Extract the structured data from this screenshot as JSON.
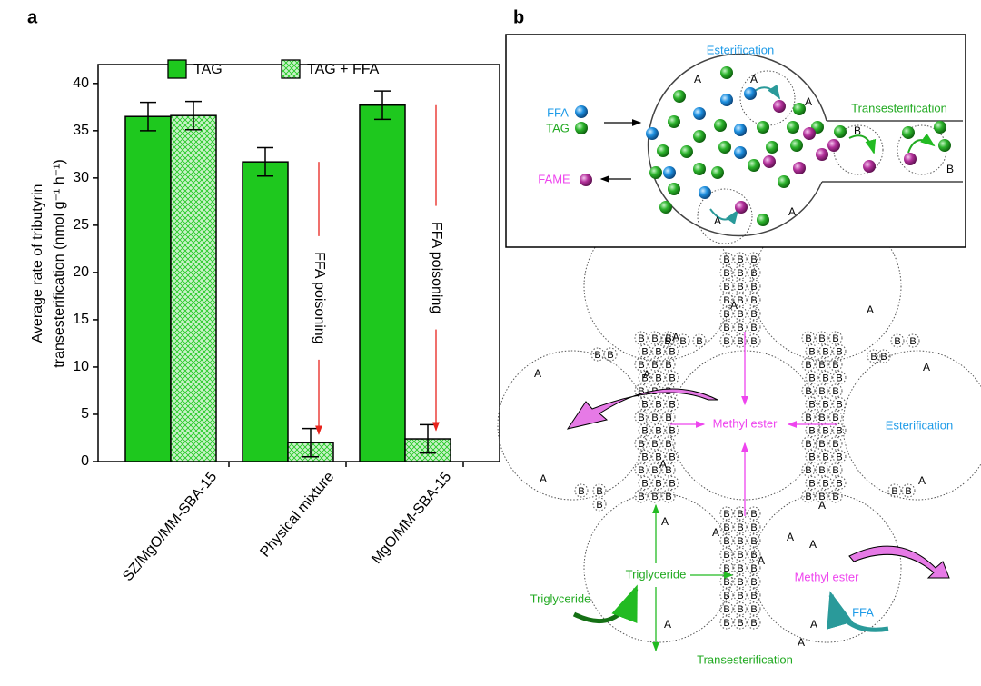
{
  "panel_labels": [
    "a",
    "b"
  ],
  "chart_data": {
    "type": "bar",
    "ylabel": [
      "Average rate of tributyrin",
      "transesterification (nmol g⁻¹ h⁻¹)"
    ],
    "categories": [
      "SZ/MgO/MM-SBA-15",
      "Physical mixture",
      "MgO/MM-SBA-15"
    ],
    "series": [
      {
        "name": "TAG",
        "color": "#1ec81e",
        "values": [
          36.5,
          31.7,
          37.7
        ],
        "errors": [
          1.5,
          1.5,
          1.5
        ]
      },
      {
        "name": "TAG + FFA",
        "color": "#1ec81e",
        "pattern": "crosshatch",
        "values": [
          36.6,
          2,
          2.4
        ],
        "errors": [
          1.5,
          1.5,
          1.5
        ]
      }
    ],
    "ylim": [
      0,
      42
    ],
    "yticks": [
      0,
      5,
      10,
      15,
      20,
      25,
      30,
      35,
      40
    ],
    "legend": "top",
    "annotations": [
      "FFA poisoning",
      "FFA poisoning"
    ],
    "annotation_color": "#e8231c"
  },
  "diagram": {
    "inset": {
      "esterification": "Esterification",
      "ffa": "FFA",
      "tag": "TAG",
      "fame": "FAME",
      "transesterification": "Transesterification"
    },
    "site_a": "A",
    "site_b": "B",
    "lower": {
      "center_label": "Methyl ester",
      "esterification": "Esterification",
      "triglyceride_center": "Triglyceride",
      "triglyceride_left": "Triglyceride",
      "methyl_ester_right": "Methyl ester",
      "ffa": "FFA",
      "transesterification": "Transesterification"
    }
  }
}
